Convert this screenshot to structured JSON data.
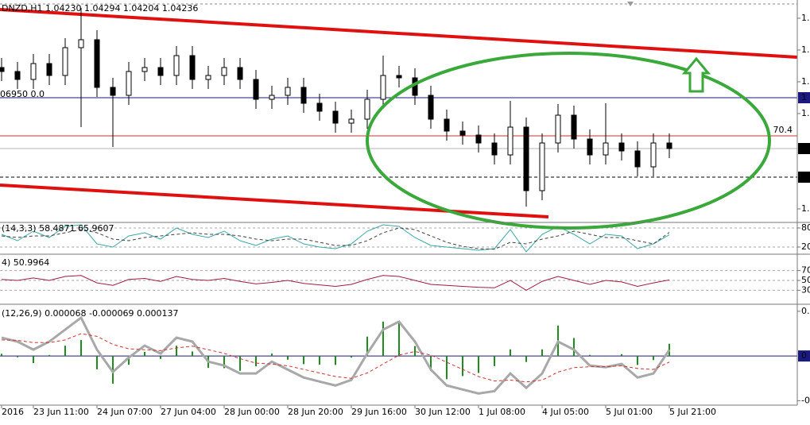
{
  "chart_data": [
    {
      "type": "candlestick",
      "title": "DNZD,H1 1.04230 1.04294 1.04204 1.04236",
      "subtitle": "06950 0.0",
      "open": [
        1.04338,
        1.04333,
        1.04323,
        1.04343,
        1.04328,
        1.04363,
        1.04373,
        1.04313,
        1.04303,
        1.04333,
        1.04338,
        1.04328,
        1.04353,
        1.04323,
        1.04328,
        1.04338,
        1.04323,
        1.04298,
        1.04303,
        1.04313,
        1.04293,
        1.04283,
        1.04268,
        1.04273,
        1.04298,
        1.04328,
        1.04325,
        1.04303,
        1.04273,
        1.04258,
        1.04253,
        1.04243,
        1.04228,
        1.04263,
        1.04183,
        1.04243,
        1.04278,
        1.04248,
        1.04228,
        1.04243,
        1.04233,
        1.04213,
        1.04243
      ],
      "high": [
        1.0435,
        1.04345,
        1.04355,
        1.04355,
        1.04375,
        1.04413,
        1.04385,
        1.04325,
        1.04345,
        1.0435,
        1.0435,
        1.04365,
        1.04365,
        1.0434,
        1.0435,
        1.0435,
        1.04335,
        1.04315,
        1.04325,
        1.04325,
        1.04305,
        1.04295,
        1.04285,
        1.0431,
        1.04353,
        1.0434,
        1.04337,
        1.04315,
        1.04285,
        1.0427,
        1.04265,
        1.04255,
        1.04296,
        1.04275,
        1.04255,
        1.04292,
        1.0429,
        1.0426,
        1.04293,
        1.04255,
        1.04245,
        1.04255,
        1.04255
      ],
      "low": [
        1.04321,
        1.04311,
        1.04311,
        1.04316,
        1.04316,
        1.04263,
        1.04301,
        1.04238,
        1.04291,
        1.04321,
        1.04316,
        1.04316,
        1.04311,
        1.04311,
        1.04316,
        1.04311,
        1.04286,
        1.04286,
        1.04291,
        1.04281,
        1.04271,
        1.04256,
        1.04256,
        1.04261,
        1.04286,
        1.04313,
        1.04291,
        1.04261,
        1.04246,
        1.04241,
        1.04231,
        1.04216,
        1.04216,
        1.04163,
        1.04171,
        1.04231,
        1.04236,
        1.04216,
        1.04216,
        1.04221,
        1.04201,
        1.04201,
        1.04224
      ],
      "close": [
        1.04333,
        1.04323,
        1.04343,
        1.04328,
        1.04363,
        1.04373,
        1.04313,
        1.04303,
        1.04333,
        1.04338,
        1.04328,
        1.04353,
        1.04323,
        1.04328,
        1.04338,
        1.04323,
        1.04298,
        1.04303,
        1.04313,
        1.04293,
        1.04283,
        1.04268,
        1.04273,
        1.04298,
        1.04328,
        1.04325,
        1.04303,
        1.04273,
        1.04258,
        1.04253,
        1.04243,
        1.04228,
        1.04263,
        1.04183,
        1.04243,
        1.04278,
        1.04248,
        1.04228,
        1.04243,
        1.04233,
        1.04213,
        1.04243,
        1.04236
      ],
      "ylim": [
        1.04145,
        1.04423
      ],
      "yticks": [
        {
          "value": 1.044,
          "label": "1."
        },
        {
          "value": 1.0436,
          "label": "1."
        },
        {
          "value": 1.0432,
          "label": "1."
        },
        {
          "value": 1.0428,
          "label": "1."
        },
        {
          "value": 1.0416,
          "label": "1."
        }
      ],
      "grid": false,
      "levels": [
        {
          "value": 1.043,
          "label": "1",
          "color": "#1a1a80",
          "style": "solid",
          "box": true
        },
        {
          "value": 1.04252,
          "label": "70.4",
          "color": "#c83232",
          "style": "solid",
          "box": false
        },
        {
          "value": 1.04236,
          "label": "1",
          "color": "#b4b4b4",
          "style": "solid",
          "box": true,
          "box_color": "#000000"
        },
        {
          "value": 1.042,
          "label": "1",
          "color": "#000000",
          "style": "dashed",
          "box": true
        }
      ],
      "xticks": [
        {
          "value": 0,
          "label": "2016"
        },
        {
          "value": 2,
          "label": "23 Jun 11:00"
        },
        {
          "value": 6,
          "label": "24 Jun 07:00"
        },
        {
          "value": 10,
          "label": "27 Jun 04:00"
        },
        {
          "value": 14,
          "label": "28 Jun 00:00"
        },
        {
          "value": 18,
          "label": "28 Jun 20:00"
        },
        {
          "value": 22,
          "label": "29 Jun 16:00"
        },
        {
          "value": 26,
          "label": "30 Jun 12:00"
        },
        {
          "value": 30,
          "label": "1 Jul 08:00"
        },
        {
          "value": 34,
          "label": "4 Jul 05:00"
        },
        {
          "value": 38,
          "label": "5 Jul 01:00"
        },
        {
          "value": 42,
          "label": "5 Jul 21:00"
        }
      ]
    },
    {
      "type": "line",
      "title": "(14,3,3) 58.4871 65.9607",
      "series": [
        {
          "color": "#3aa6a6",
          "dashed": false,
          "values": [
            60,
            40,
            70,
            50,
            85,
            90,
            30,
            20,
            55,
            65,
            45,
            80,
            60,
            50,
            70,
            40,
            25,
            45,
            55,
            30,
            20,
            15,
            30,
            70,
            90,
            85,
            50,
            25,
            20,
            15,
            10,
            15,
            75,
            5,
            60,
            85,
            60,
            30,
            60,
            55,
            15,
            30,
            58.4871
          ]
        },
        {
          "color": "#404040",
          "dashed": true,
          "values": [
            55,
            50,
            55,
            55,
            65,
            75,
            65,
            45,
            40,
            50,
            55,
            60,
            65,
            60,
            60,
            55,
            45,
            40,
            45,
            45,
            35,
            25,
            25,
            40,
            65,
            80,
            75,
            55,
            35,
            22,
            15,
            13,
            35,
            30,
            45,
            55,
            70,
            60,
            50,
            50,
            40,
            30,
            65.9607
          ]
        }
      ],
      "ylim": [
        0,
        100
      ],
      "yticks": [
        80,
        20
      ],
      "grid": true
    },
    {
      "type": "line",
      "title": "4) 50.9964",
      "series": [
        {
          "color": "#a01c3c",
          "dashed": false,
          "values": [
            52,
            50,
            55,
            50,
            58,
            60,
            45,
            40,
            52,
            54,
            48,
            58,
            52,
            50,
            54,
            48,
            43,
            46,
            50,
            44,
            41,
            38,
            42,
            52,
            60,
            58,
            50,
            42,
            40,
            38,
            36,
            35,
            50,
            30,
            48,
            58,
            50,
            42,
            50,
            47,
            38,
            45,
            50.9964
          ]
        }
      ],
      "ylim": [
        0,
        100
      ],
      "yticks": [
        70,
        50,
        30
      ],
      "grid": true
    },
    {
      "type": "macd",
      "title": "(12,26,9) 0.000068 -0.000069 0.000137",
      "series": [
        {
          "color": "#a8a8a8",
          "dashed": false,
          "values": [
            0.000205,
            0.000161,
            7.1e-05,
            0.000161,
            0.000295,
            0.000429,
            7.1e-05,
            -0.000179,
            -1.8e-05,
            0.000116,
            2.7e-05,
            0.000205,
            0.000161,
            -6.3e-05,
            -0.000107,
            -0.000196,
            -0.000196,
            -6.3e-05,
            -0.000152,
            -0.000241,
            -0.000286,
            -0.00033,
            -0.000268,
            2.7e-05,
            0.000295,
            0.000384,
            0.000161,
            -0.000152,
            -0.00033,
            -0.000375,
            -0.00042,
            -0.000393,
            -0.000196,
            -0.000357,
            -0.000196,
            0.000161,
            7.1e-05,
            -0.000107,
            -0.000125,
            -8.9e-05,
            -0.000241,
            -0.000196,
            6.8e-05
          ]
        },
        {
          "color": "#d03030",
          "dashed": true,
          "values": [
            0.00018,
            0.000175,
            0.00015,
            0.00015,
            0.00018,
            0.00025,
            0.00022,
            0.00013,
            8e-05,
            7e-05,
            6e-05,
            9e-05,
            0.00011,
            7e-05,
            3e-05,
            -3e-05,
            -8e-05,
            -9e-05,
            -0.00011,
            -0.00015,
            -0.00019,
            -0.00023,
            -0.00025,
            -0.00019,
            -9e-05,
            1e-05,
            5e-05,
            1e-05,
            -7e-05,
            -0.00015,
            -0.00023,
            -0.00028,
            -0.00027,
            -0.00029,
            -0.00027,
            -0.00018,
            -0.00013,
            -0.00012,
            -0.00012,
            -0.00011,
            -0.00014,
            -0.00015,
            -6.9e-05
          ]
        }
      ],
      "histogram": {
        "color": "#1e8c1e",
        "values": [
          2.5e-05,
          -1.4e-05,
          -7.9e-05,
          1.1e-05,
          0.000115,
          0.000179,
          -0.000149,
          -0.000309,
          -9.8e-05,
          4.6e-05,
          -3.3e-05,
          0.000115,
          5.1e-05,
          -0.000133,
          -0.000137,
          -0.000166,
          -0.000116,
          2.7e-05,
          -4.2e-05,
          -9.1e-05,
          -9.6e-05,
          -0.0001,
          -1.8e-05,
          0.000217,
          0.000385,
          0.000374,
          0.000111,
          -0.000162,
          -0.00026,
          -0.000225,
          -0.00019,
          -0.000113,
          7.4e-05,
          -6.7e-05,
          7.4e-05,
          0.000341,
          0.000201,
          1.3e-05,
          -5e-06,
          2.1e-05,
          -0.000101,
          -4.6e-05,
          0.000137
        ]
      },
      "ylim": [
        -0.00055,
        0.00057
      ],
      "yticks": [
        {
          "value": 0.0005,
          "label": "0."
        },
        0,
        {
          "value": -0.0005,
          "label": "-0"
        }
      ],
      "grid": false,
      "zero_line": true
    }
  ]
}
